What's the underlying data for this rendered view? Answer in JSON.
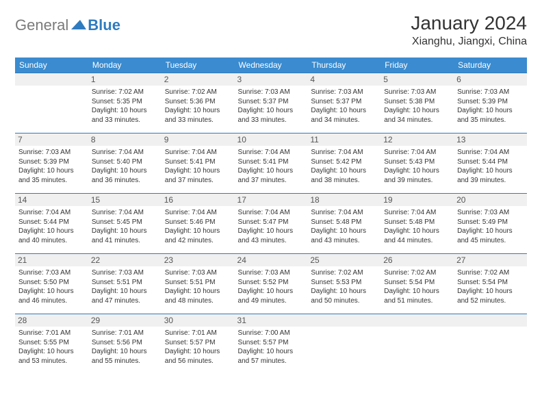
{
  "logo": {
    "text1": "General",
    "text2": "Blue",
    "text1_color": "#7a7a7a",
    "text2_color": "#2f7bbf"
  },
  "title": "January 2024",
  "location": "Xianghu, Jiangxi, China",
  "colors": {
    "header_bg": "#3a8bcf",
    "header_text": "#ffffff",
    "row_border": "#2f7bbf",
    "daynum_bg": "#f0f0f0",
    "text": "#333333"
  },
  "day_headers": [
    "Sunday",
    "Monday",
    "Tuesday",
    "Wednesday",
    "Thursday",
    "Friday",
    "Saturday"
  ],
  "weeks": [
    [
      {
        "day": "",
        "sunrise": "",
        "sunset": "",
        "daylight": ""
      },
      {
        "day": "1",
        "sunrise": "Sunrise: 7:02 AM",
        "sunset": "Sunset: 5:35 PM",
        "daylight": "Daylight: 10 hours and 33 minutes."
      },
      {
        "day": "2",
        "sunrise": "Sunrise: 7:02 AM",
        "sunset": "Sunset: 5:36 PM",
        "daylight": "Daylight: 10 hours and 33 minutes."
      },
      {
        "day": "3",
        "sunrise": "Sunrise: 7:03 AM",
        "sunset": "Sunset: 5:37 PM",
        "daylight": "Daylight: 10 hours and 33 minutes."
      },
      {
        "day": "4",
        "sunrise": "Sunrise: 7:03 AM",
        "sunset": "Sunset: 5:37 PM",
        "daylight": "Daylight: 10 hours and 34 minutes."
      },
      {
        "day": "5",
        "sunrise": "Sunrise: 7:03 AM",
        "sunset": "Sunset: 5:38 PM",
        "daylight": "Daylight: 10 hours and 34 minutes."
      },
      {
        "day": "6",
        "sunrise": "Sunrise: 7:03 AM",
        "sunset": "Sunset: 5:39 PM",
        "daylight": "Daylight: 10 hours and 35 minutes."
      }
    ],
    [
      {
        "day": "7",
        "sunrise": "Sunrise: 7:03 AM",
        "sunset": "Sunset: 5:39 PM",
        "daylight": "Daylight: 10 hours and 35 minutes."
      },
      {
        "day": "8",
        "sunrise": "Sunrise: 7:04 AM",
        "sunset": "Sunset: 5:40 PM",
        "daylight": "Daylight: 10 hours and 36 minutes."
      },
      {
        "day": "9",
        "sunrise": "Sunrise: 7:04 AM",
        "sunset": "Sunset: 5:41 PM",
        "daylight": "Daylight: 10 hours and 37 minutes."
      },
      {
        "day": "10",
        "sunrise": "Sunrise: 7:04 AM",
        "sunset": "Sunset: 5:41 PM",
        "daylight": "Daylight: 10 hours and 37 minutes."
      },
      {
        "day": "11",
        "sunrise": "Sunrise: 7:04 AM",
        "sunset": "Sunset: 5:42 PM",
        "daylight": "Daylight: 10 hours and 38 minutes."
      },
      {
        "day": "12",
        "sunrise": "Sunrise: 7:04 AM",
        "sunset": "Sunset: 5:43 PM",
        "daylight": "Daylight: 10 hours and 39 minutes."
      },
      {
        "day": "13",
        "sunrise": "Sunrise: 7:04 AM",
        "sunset": "Sunset: 5:44 PM",
        "daylight": "Daylight: 10 hours and 39 minutes."
      }
    ],
    [
      {
        "day": "14",
        "sunrise": "Sunrise: 7:04 AM",
        "sunset": "Sunset: 5:44 PM",
        "daylight": "Daylight: 10 hours and 40 minutes."
      },
      {
        "day": "15",
        "sunrise": "Sunrise: 7:04 AM",
        "sunset": "Sunset: 5:45 PM",
        "daylight": "Daylight: 10 hours and 41 minutes."
      },
      {
        "day": "16",
        "sunrise": "Sunrise: 7:04 AM",
        "sunset": "Sunset: 5:46 PM",
        "daylight": "Daylight: 10 hours and 42 minutes."
      },
      {
        "day": "17",
        "sunrise": "Sunrise: 7:04 AM",
        "sunset": "Sunset: 5:47 PM",
        "daylight": "Daylight: 10 hours and 43 minutes."
      },
      {
        "day": "18",
        "sunrise": "Sunrise: 7:04 AM",
        "sunset": "Sunset: 5:48 PM",
        "daylight": "Daylight: 10 hours and 43 minutes."
      },
      {
        "day": "19",
        "sunrise": "Sunrise: 7:04 AM",
        "sunset": "Sunset: 5:48 PM",
        "daylight": "Daylight: 10 hours and 44 minutes."
      },
      {
        "day": "20",
        "sunrise": "Sunrise: 7:03 AM",
        "sunset": "Sunset: 5:49 PM",
        "daylight": "Daylight: 10 hours and 45 minutes."
      }
    ],
    [
      {
        "day": "21",
        "sunrise": "Sunrise: 7:03 AM",
        "sunset": "Sunset: 5:50 PM",
        "daylight": "Daylight: 10 hours and 46 minutes."
      },
      {
        "day": "22",
        "sunrise": "Sunrise: 7:03 AM",
        "sunset": "Sunset: 5:51 PM",
        "daylight": "Daylight: 10 hours and 47 minutes."
      },
      {
        "day": "23",
        "sunrise": "Sunrise: 7:03 AM",
        "sunset": "Sunset: 5:51 PM",
        "daylight": "Daylight: 10 hours and 48 minutes."
      },
      {
        "day": "24",
        "sunrise": "Sunrise: 7:03 AM",
        "sunset": "Sunset: 5:52 PM",
        "daylight": "Daylight: 10 hours and 49 minutes."
      },
      {
        "day": "25",
        "sunrise": "Sunrise: 7:02 AM",
        "sunset": "Sunset: 5:53 PM",
        "daylight": "Daylight: 10 hours and 50 minutes."
      },
      {
        "day": "26",
        "sunrise": "Sunrise: 7:02 AM",
        "sunset": "Sunset: 5:54 PM",
        "daylight": "Daylight: 10 hours and 51 minutes."
      },
      {
        "day": "27",
        "sunrise": "Sunrise: 7:02 AM",
        "sunset": "Sunset: 5:54 PM",
        "daylight": "Daylight: 10 hours and 52 minutes."
      }
    ],
    [
      {
        "day": "28",
        "sunrise": "Sunrise: 7:01 AM",
        "sunset": "Sunset: 5:55 PM",
        "daylight": "Daylight: 10 hours and 53 minutes."
      },
      {
        "day": "29",
        "sunrise": "Sunrise: 7:01 AM",
        "sunset": "Sunset: 5:56 PM",
        "daylight": "Daylight: 10 hours and 55 minutes."
      },
      {
        "day": "30",
        "sunrise": "Sunrise: 7:01 AM",
        "sunset": "Sunset: 5:57 PM",
        "daylight": "Daylight: 10 hours and 56 minutes."
      },
      {
        "day": "31",
        "sunrise": "Sunrise: 7:00 AM",
        "sunset": "Sunset: 5:57 PM",
        "daylight": "Daylight: 10 hours and 57 minutes."
      },
      {
        "day": "",
        "sunrise": "",
        "sunset": "",
        "daylight": ""
      },
      {
        "day": "",
        "sunrise": "",
        "sunset": "",
        "daylight": ""
      },
      {
        "day": "",
        "sunrise": "",
        "sunset": "",
        "daylight": ""
      }
    ]
  ]
}
